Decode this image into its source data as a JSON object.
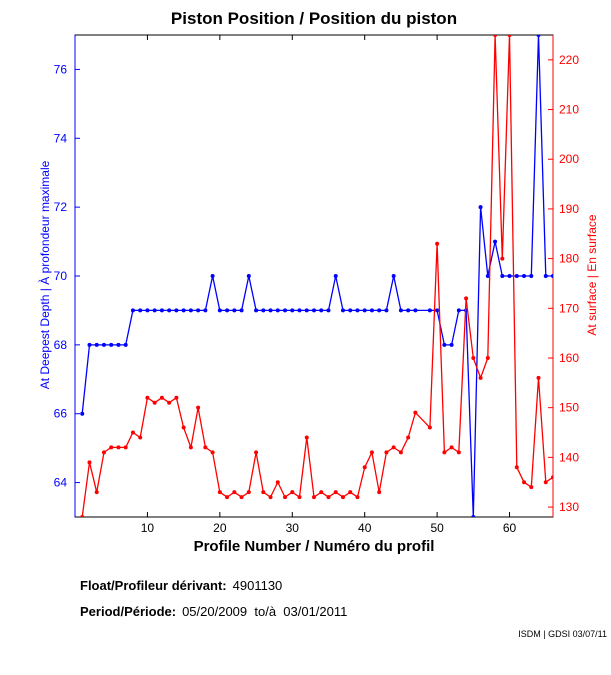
{
  "chart_data": {
    "type": "line",
    "title": "Piston Position / Position du piston",
    "xlabel": "Profile Number / Numéro du profil",
    "ylabel_left": "At Deepest Depth | À profondeur maximale",
    "ylabel_right": "At surface | En surface",
    "xlim": [
      0,
      66
    ],
    "ylim_left": [
      63,
      77
    ],
    "ylim_right": [
      128,
      225
    ],
    "x_ticks": [
      10,
      20,
      30,
      40,
      50,
      60
    ],
    "y_ticks_left": [
      64,
      66,
      68,
      70,
      72,
      74,
      76
    ],
    "y_ticks_right": [
      130,
      140,
      150,
      160,
      170,
      180,
      190,
      200,
      210,
      220
    ],
    "series": [
      {
        "name": "At Deepest Depth | À profondeur maximale",
        "axis": "left",
        "color": "#0000ff",
        "x": [
          1,
          2,
          3,
          4,
          5,
          6,
          7,
          8,
          9,
          10,
          11,
          12,
          13,
          14,
          15,
          16,
          17,
          18,
          19,
          20,
          21,
          22,
          23,
          24,
          25,
          26,
          27,
          28,
          29,
          30,
          31,
          32,
          33,
          34,
          35,
          36,
          37,
          38,
          39,
          40,
          41,
          42,
          43,
          44,
          45,
          46,
          47,
          49,
          50,
          51,
          52,
          53,
          54,
          55,
          56,
          57,
          58,
          59,
          60,
          61,
          62,
          63,
          64,
          65,
          66
        ],
        "values": [
          66,
          68,
          68,
          68,
          68,
          68,
          68,
          69,
          69,
          69,
          69,
          69,
          69,
          69,
          69,
          69,
          69,
          69,
          70,
          69,
          69,
          69,
          69,
          70,
          69,
          69,
          69,
          69,
          69,
          69,
          69,
          69,
          69,
          69,
          69,
          70,
          69,
          69,
          69,
          69,
          69,
          69,
          69,
          70,
          69,
          69,
          69,
          69,
          69,
          68,
          68,
          69,
          69,
          63,
          72,
          70,
          71,
          70,
          70,
          70,
          70,
          70,
          77,
          70,
          70
        ]
      },
      {
        "name": "At surface | En surface",
        "axis": "right",
        "color": "#ff0000",
        "x": [
          1,
          2,
          3,
          4,
          5,
          6,
          7,
          8,
          9,
          10,
          11,
          12,
          13,
          14,
          15,
          16,
          17,
          18,
          19,
          20,
          21,
          22,
          23,
          24,
          25,
          26,
          27,
          28,
          29,
          30,
          31,
          32,
          33,
          34,
          35,
          36,
          37,
          38,
          39,
          40,
          41,
          42,
          43,
          44,
          45,
          46,
          47,
          49,
          50,
          51,
          52,
          53,
          54,
          55,
          56,
          57,
          58,
          59,
          60,
          61,
          62,
          63,
          64,
          65,
          66
        ],
        "values": [
          128,
          139,
          133,
          141,
          142,
          142,
          142,
          145,
          144,
          152,
          151,
          152,
          151,
          152,
          146,
          142,
          150,
          142,
          141,
          133,
          132,
          133,
          132,
          133,
          141,
          133,
          132,
          135,
          132,
          133,
          132,
          144,
          132,
          133,
          132,
          133,
          132,
          133,
          132,
          138,
          141,
          133,
          141,
          142,
          141,
          144,
          149,
          146,
          183,
          141,
          142,
          141,
          172,
          160,
          156,
          160,
          225,
          180,
          225,
          138,
          135,
          134,
          156,
          135,
          136
        ]
      }
    ]
  },
  "info": {
    "float_label": "Float/Profileur dérivant:",
    "float_value": "4901130",
    "period_label": "Period/Période:",
    "period_value": "05/20/2009  to/à  03/01/2011"
  },
  "credit": "ISDM | GDSI 03/07/11"
}
